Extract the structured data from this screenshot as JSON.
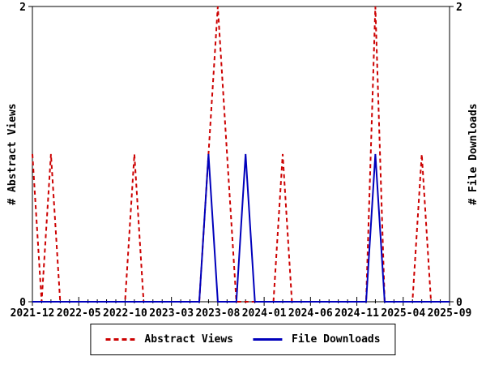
{
  "colors": {
    "abstract_views": "#cc0000",
    "file_downloads": "#0000bb",
    "axis": "#000000",
    "background": "#ffffff"
  },
  "left_axis_label": "# Abstract Views",
  "right_axis_label": "# File Downloads",
  "legend": {
    "items": [
      {
        "label": "Abstract Views",
        "style": "dashed",
        "color": "#cc0000"
      },
      {
        "label": "File Downloads",
        "style": "solid",
        "color": "#0000bb"
      }
    ]
  },
  "chart_data": {
    "type": "line",
    "title": "",
    "xlabel": "",
    "ylabel_left": "# Abstract Views",
    "ylabel_right": "# File Downloads",
    "ylim": [
      0,
      2
    ],
    "y_ticks": [
      0,
      2
    ],
    "grid": false,
    "legend_position": "bottom-center",
    "x_major_tick_every": 5,
    "x_tick_labels": [
      "2021-12",
      "2022-05",
      "2022-10",
      "2023-03",
      "2023-08",
      "2024-01",
      "2024-06",
      "2024-11",
      "2025-04",
      "2025-09"
    ],
    "x": [
      "2021-12",
      "2022-01",
      "2022-02",
      "2022-03",
      "2022-04",
      "2022-05",
      "2022-06",
      "2022-07",
      "2022-08",
      "2022-09",
      "2022-10",
      "2022-11",
      "2022-12",
      "2023-01",
      "2023-02",
      "2023-03",
      "2023-04",
      "2023-05",
      "2023-06",
      "2023-07",
      "2023-08",
      "2023-09",
      "2023-10",
      "2023-11",
      "2023-12",
      "2024-01",
      "2024-02",
      "2024-03",
      "2024-04",
      "2024-05",
      "2024-06",
      "2024-07",
      "2024-08",
      "2024-09",
      "2024-10",
      "2024-11",
      "2024-12",
      "2025-01",
      "2025-02",
      "2025-03",
      "2025-04",
      "2025-05",
      "2025-06",
      "2025-07",
      "2025-08",
      "2025-09"
    ],
    "series": [
      {
        "name": "Abstract Views",
        "color": "#cc0000",
        "dash": true,
        "values": [
          1,
          0,
          1,
          0,
          0,
          0,
          0,
          0,
          0,
          0,
          0,
          1,
          0,
          0,
          0,
          0,
          0,
          0,
          0,
          1,
          2,
          1,
          0,
          0,
          0,
          0,
          0,
          1,
          0,
          0,
          0,
          0,
          0,
          0,
          0,
          0,
          0,
          2,
          0,
          0,
          0,
          0,
          1,
          0,
          0,
          0
        ]
      },
      {
        "name": "File Downloads",
        "color": "#0000bb",
        "dash": false,
        "values": [
          0,
          0,
          0,
          0,
          0,
          0,
          0,
          0,
          0,
          0,
          0,
          0,
          0,
          0,
          0,
          0,
          0,
          0,
          0,
          1,
          0,
          0,
          0,
          1,
          0,
          0,
          0,
          0,
          0,
          0,
          0,
          0,
          0,
          0,
          0,
          0,
          0,
          1,
          0,
          0,
          0,
          0,
          0,
          0,
          0,
          0
        ]
      }
    ]
  }
}
